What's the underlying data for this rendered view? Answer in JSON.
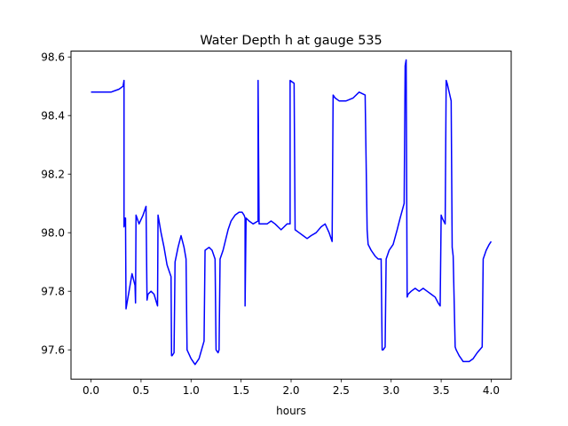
{
  "chart_data": {
    "type": "line",
    "title": "Water Depth h at gauge 535",
    "xlabel": "hours",
    "ylabel": "",
    "xlim": [
      -0.2,
      4.2
    ],
    "ylim": [
      97.5,
      98.62
    ],
    "xticks": [
      0.0,
      0.5,
      1.0,
      1.5,
      2.0,
      2.5,
      3.0,
      3.5,
      4.0
    ],
    "xtick_labels": [
      "0.0",
      "0.5",
      "1.0",
      "1.5",
      "2.0",
      "2.5",
      "3.0",
      "3.5",
      "4.0"
    ],
    "yticks": [
      97.6,
      97.8,
      98.0,
      98.2,
      98.4,
      98.6
    ],
    "ytick_labels": [
      "97.6",
      "97.8",
      "98.0",
      "98.2",
      "98.4",
      "98.6"
    ],
    "grid": false,
    "series": [
      {
        "color": "#0000ff",
        "x": [
          0.0,
          0.2,
          0.28,
          0.32,
          0.33,
          0.33,
          0.34,
          0.345,
          0.35,
          0.38,
          0.41,
          0.44,
          0.445,
          0.45,
          0.48,
          0.52,
          0.55,
          0.56,
          0.57,
          0.6,
          0.63,
          0.665,
          0.67,
          0.7,
          0.73,
          0.76,
          0.8,
          0.805,
          0.81,
          0.83,
          0.84,
          0.87,
          0.9,
          0.93,
          0.95,
          0.96,
          1.0,
          1.04,
          1.08,
          1.13,
          1.14,
          1.18,
          1.21,
          1.24,
          1.25,
          1.27,
          1.28,
          1.29,
          1.32,
          1.37,
          1.4,
          1.44,
          1.48,
          1.51,
          1.53,
          1.54,
          1.54,
          1.55,
          1.58,
          1.62,
          1.67,
          1.67,
          1.68,
          1.72,
          1.76,
          1.8,
          1.84,
          1.87,
          1.9,
          1.93,
          1.96,
          1.99,
          1.99,
          2.03,
          2.04,
          2.08,
          2.12,
          2.16,
          2.2,
          2.25,
          2.3,
          2.34,
          2.38,
          2.41,
          2.42,
          2.44,
          2.48,
          2.55,
          2.62,
          2.68,
          2.74,
          2.76,
          2.77,
          2.8,
          2.84,
          2.87,
          2.9,
          2.91,
          2.92,
          2.94,
          2.95,
          2.98,
          3.02,
          3.06,
          3.09,
          3.13,
          3.14,
          3.15,
          3.16,
          3.17,
          3.2,
          3.24,
          3.28,
          3.32,
          3.36,
          3.4,
          3.44,
          3.47,
          3.49,
          3.5,
          3.51,
          3.54,
          3.55,
          3.56,
          3.6,
          3.61,
          3.62,
          3.64,
          3.65,
          3.68,
          3.7,
          3.72,
          3.75,
          3.78,
          3.82,
          3.86,
          3.91,
          3.92,
          3.95,
          3.98,
          4.0
        ],
        "y": [
          98.48,
          98.48,
          98.49,
          98.5,
          98.52,
          98.02,
          98.05,
          98.05,
          97.74,
          97.8,
          97.86,
          97.82,
          97.76,
          98.06,
          98.03,
          98.06,
          98.09,
          97.77,
          97.79,
          97.8,
          97.79,
          97.75,
          98.06,
          98.0,
          97.95,
          97.89,
          97.85,
          97.58,
          97.58,
          97.59,
          97.9,
          97.95,
          97.99,
          97.95,
          97.91,
          97.6,
          97.57,
          97.55,
          97.57,
          97.63,
          97.94,
          97.95,
          97.94,
          97.91,
          97.6,
          97.59,
          97.6,
          97.91,
          97.94,
          98.01,
          98.04,
          98.06,
          98.07,
          98.07,
          98.06,
          98.05,
          97.75,
          98.05,
          98.04,
          98.03,
          98.04,
          98.52,
          98.03,
          98.03,
          98.03,
          98.04,
          98.03,
          98.02,
          98.01,
          98.02,
          98.03,
          98.03,
          98.52,
          98.51,
          98.01,
          98.0,
          97.99,
          97.98,
          97.99,
          98.0,
          98.02,
          98.03,
          98.0,
          97.97,
          98.47,
          98.46,
          98.45,
          98.45,
          98.46,
          98.48,
          98.47,
          98.01,
          97.96,
          97.94,
          97.92,
          97.91,
          97.91,
          97.6,
          97.6,
          97.61,
          97.91,
          97.94,
          97.96,
          98.01,
          98.05,
          98.1,
          98.57,
          98.59,
          97.78,
          97.79,
          97.8,
          97.81,
          97.8,
          97.81,
          97.8,
          97.79,
          97.78,
          97.76,
          97.75,
          98.06,
          98.05,
          98.03,
          98.52,
          98.51,
          98.45,
          97.95,
          97.92,
          97.61,
          97.6,
          97.58,
          97.57,
          97.56,
          97.56,
          97.56,
          97.57,
          97.59,
          97.61,
          97.91,
          97.94,
          97.96,
          97.97
        ]
      }
    ]
  }
}
